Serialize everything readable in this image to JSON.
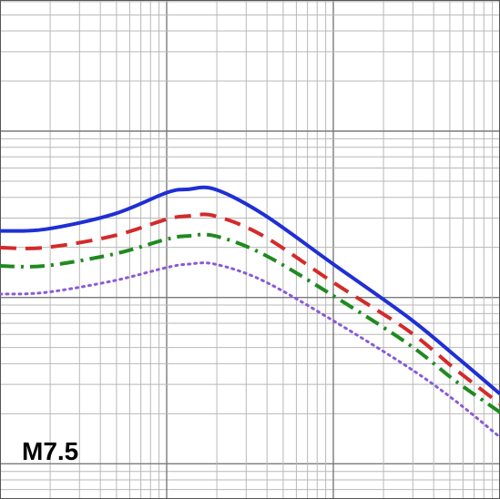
{
  "panel_label": "M7.5",
  "chart_data": {
    "type": "line",
    "title": "",
    "xlabel": "",
    "ylabel": "",
    "x_scale": "log",
    "y_scale": "log",
    "xlim_decades": [
      0,
      3
    ],
    "ylim_decades": [
      0,
      3
    ],
    "grid": true,
    "legend": "none",
    "series": [
      {
        "color": "#1f2fd6",
        "style": "solid",
        "points": [
          [
            0.0,
            2.4
          ],
          [
            0.27,
            2.41
          ],
          [
            0.68,
            2.5
          ],
          [
            1.0,
            2.63
          ],
          [
            1.13,
            2.65
          ],
          [
            1.29,
            2.65
          ],
          [
            1.58,
            2.5
          ],
          [
            2.0,
            2.2
          ],
          [
            2.45,
            1.88
          ],
          [
            2.73,
            1.65
          ],
          [
            3.0,
            1.42
          ]
        ]
      },
      {
        "color": "#d42a2a",
        "style": "dashed",
        "points": [
          [
            0.0,
            2.3
          ],
          [
            0.27,
            2.3
          ],
          [
            0.68,
            2.37
          ],
          [
            1.0,
            2.47
          ],
          [
            1.13,
            2.49
          ],
          [
            1.29,
            2.49
          ],
          [
            1.58,
            2.37
          ],
          [
            2.0,
            2.09
          ],
          [
            2.45,
            1.8
          ],
          [
            2.73,
            1.57
          ],
          [
            3.0,
            1.36
          ]
        ]
      },
      {
        "color": "#1f8a1f",
        "style": "dash-dot",
        "points": [
          [
            0.0,
            2.19
          ],
          [
            0.27,
            2.19
          ],
          [
            0.68,
            2.26
          ],
          [
            1.0,
            2.35
          ],
          [
            1.13,
            2.37
          ],
          [
            1.29,
            2.37
          ],
          [
            1.58,
            2.26
          ],
          [
            2.0,
            2.01
          ],
          [
            2.45,
            1.72
          ],
          [
            2.73,
            1.5
          ],
          [
            3.0,
            1.31
          ]
        ]
      },
      {
        "color": "#8a5ad8",
        "style": "dotted",
        "points": [
          [
            0.0,
            2.02
          ],
          [
            0.27,
            2.03
          ],
          [
            0.68,
            2.1
          ],
          [
            1.0,
            2.18
          ],
          [
            1.13,
            2.2
          ],
          [
            1.29,
            2.2
          ],
          [
            1.58,
            2.1
          ],
          [
            2.0,
            1.86
          ],
          [
            2.45,
            1.58
          ],
          [
            2.73,
            1.38
          ],
          [
            3.0,
            1.16
          ]
        ]
      }
    ]
  }
}
